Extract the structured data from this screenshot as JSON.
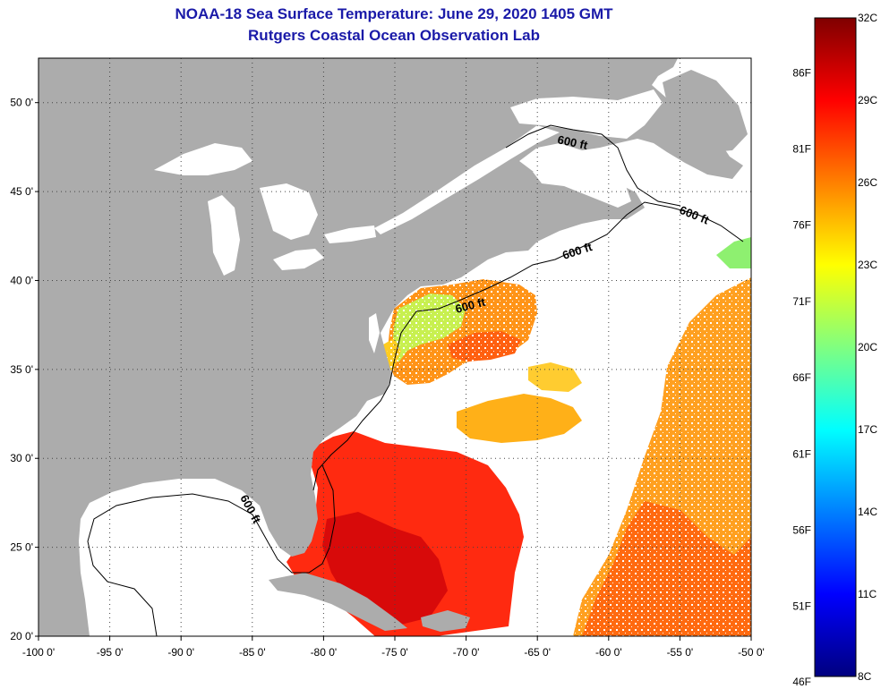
{
  "header": {
    "title": "NOAA-18 Sea Surface Temperature:  June 29, 2020 1405 GMT",
    "subtitle": "Rutgers Coastal Ocean Observation Lab"
  },
  "map": {
    "lon_range": [
      -100,
      -50
    ],
    "lat_range": [
      20,
      52.5
    ],
    "lon_ticks": [
      {
        "value": -100,
        "label": "-100 0'"
      },
      {
        "value": -95,
        "label": "-95 0'"
      },
      {
        "value": -90,
        "label": "-90 0'"
      },
      {
        "value": -85,
        "label": "-85 0'"
      },
      {
        "value": -80,
        "label": "-80 0'"
      },
      {
        "value": -75,
        "label": "-75 0'"
      },
      {
        "value": -70,
        "label": "-70 0'"
      },
      {
        "value": -65,
        "label": "-65 0'"
      },
      {
        "value": -60,
        "label": "-60 0'"
      },
      {
        "value": -55,
        "label": "-55 0'"
      },
      {
        "value": -50,
        "label": "-50 0'"
      }
    ],
    "lat_ticks": [
      {
        "value": 20,
        "label": "20 0'"
      },
      {
        "value": 25,
        "label": "25 0'"
      },
      {
        "value": 30,
        "label": "30 0'"
      },
      {
        "value": 35,
        "label": "35 0'"
      },
      {
        "value": 40,
        "label": "40 0'"
      },
      {
        "value": 45,
        "label": "45 0'"
      },
      {
        "value": 50,
        "label": "50 0'"
      }
    ],
    "contour_labels": [
      "600 ft",
      "600 ft",
      "600 ft",
      "600 ft",
      "600 ft"
    ],
    "colors": {
      "land": "#acacac",
      "no_data": "#ffffff",
      "graticule": "#444444"
    }
  },
  "colorbar": {
    "min_c": 8,
    "max_c": 32,
    "celsius_labels": [
      "32C",
      "29C",
      "26C",
      "23C",
      "20C",
      "17C",
      "14C",
      "11C",
      "8C"
    ],
    "fahrenheit_labels": [
      "86F",
      "81F",
      "76F",
      "71F",
      "66F",
      "61F",
      "56F",
      "51F",
      "46F"
    ],
    "stops": [
      "#00007f",
      "#0000ff",
      "#0080ff",
      "#00ffff",
      "#80ff80",
      "#ffff00",
      "#ff8000",
      "#ff0000",
      "#7f0000"
    ]
  }
}
